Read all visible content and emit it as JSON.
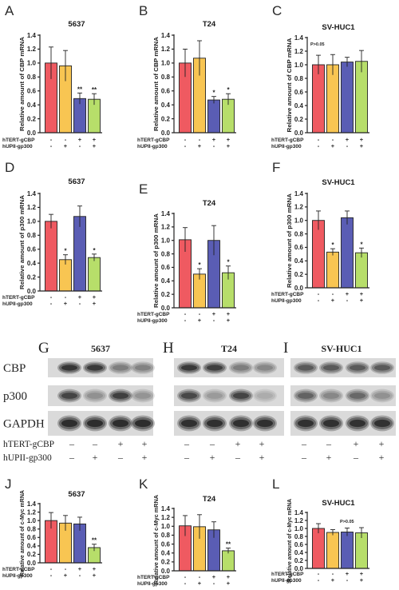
{
  "palette": {
    "bar_colors": [
      "#ef5a61",
      "#f8c552",
      "#5a5db4",
      "#b7de6a"
    ]
  },
  "chart_data": [
    {
      "panel": "A",
      "type": "bar",
      "title": "5637",
      "ylabel": "Relative amount of CBP mRNA",
      "ylim": [
        0,
        1.4
      ],
      "ytick_labels": [
        "0.0",
        "0.2",
        "0.4",
        "0.6",
        "0.8",
        "1.0",
        "1.2",
        "1.4"
      ],
      "values": [
        1.0,
        0.96,
        0.49,
        0.48
      ],
      "errors": [
        0.23,
        0.22,
        0.08,
        0.08
      ],
      "significance": [
        "",
        "",
        "**",
        "**"
      ],
      "annotation": "",
      "conditions": [
        {
          "label": "hTERT-gCBP",
          "signs": [
            "-",
            "-",
            "+",
            "+"
          ]
        },
        {
          "label": "hUPII-gp300",
          "signs": [
            "-",
            "+",
            "-",
            "+"
          ]
        }
      ]
    },
    {
      "panel": "B",
      "type": "bar",
      "title": "T24",
      "ylabel": "Relative amount of CBP mRNA",
      "ylim": [
        0,
        1.4
      ],
      "ytick_labels": [
        "0.0",
        "0.2",
        "0.4",
        "0.6",
        "0.8",
        "1.0",
        "1.2",
        "1.4"
      ],
      "values": [
        1.0,
        1.07,
        0.47,
        0.48
      ],
      "errors": [
        0.2,
        0.25,
        0.05,
        0.08
      ],
      "significance": [
        "",
        "",
        "*",
        "*"
      ],
      "annotation": "",
      "conditions": [
        {
          "label": "hTERT-gCBP",
          "signs": [
            "-",
            "-",
            "+",
            "+"
          ]
        },
        {
          "label": "hUPII-gp300",
          "signs": [
            "-",
            "+",
            "-",
            "+"
          ]
        }
      ]
    },
    {
      "panel": "C",
      "type": "bar",
      "title": "SV-HUC1",
      "ylabel": "Relative amount of CBP mRNA",
      "ylim": [
        0,
        1.4
      ],
      "ytick_labels": [
        "0.0",
        "0.2",
        "0.4",
        "0.6",
        "0.8",
        "1.0",
        "1.2",
        "1.4"
      ],
      "values": [
        1.0,
        1.0,
        1.04,
        1.05
      ],
      "errors": [
        0.14,
        0.15,
        0.07,
        0.16
      ],
      "significance": [
        "",
        "",
        "",
        ""
      ],
      "annotation": "P>0.05",
      "conditions": [
        {
          "label": "hTERT-gCBP",
          "signs": [
            "-",
            "-",
            "+",
            "+"
          ]
        },
        {
          "label": "hUPII-gp300",
          "signs": [
            "-",
            "+",
            "-",
            "+"
          ]
        }
      ]
    },
    {
      "panel": "D",
      "type": "bar",
      "title": "5637",
      "ylabel": "Relative amount of p300 mRNA",
      "ylim": [
        0,
        1.4
      ],
      "ytick_labels": [
        "0.0",
        "0.2",
        "0.4",
        "0.6",
        "0.8",
        "1.0",
        "1.2",
        "1.4"
      ],
      "values": [
        1.0,
        0.45,
        1.07,
        0.48
      ],
      "errors": [
        0.1,
        0.07,
        0.15,
        0.05
      ],
      "significance": [
        "",
        "*",
        "",
        "*"
      ],
      "annotation": "",
      "conditions": [
        {
          "label": "hTERT-gCBP",
          "signs": [
            "-",
            "-",
            "+",
            "+"
          ]
        },
        {
          "label": "hUPII-gp300",
          "signs": [
            "-",
            "+",
            "-",
            "+"
          ]
        }
      ]
    },
    {
      "panel": "E",
      "type": "bar",
      "title": "T24",
      "ylabel": "Relative amount of p300 mRNA",
      "ylim": [
        0,
        1.4
      ],
      "ytick_labels": [
        "0.0",
        "0.2",
        "0.4",
        "0.6",
        "0.8",
        "1.0",
        "1.2",
        "1.4"
      ],
      "values": [
        1.01,
        0.5,
        1.0,
        0.52
      ],
      "errors": [
        0.18,
        0.08,
        0.22,
        0.1
      ],
      "significance": [
        "",
        "*",
        "",
        "*"
      ],
      "annotation": "",
      "conditions": [
        {
          "label": "hTERT-gCBP",
          "signs": [
            "-",
            "-",
            "+",
            "+"
          ]
        },
        {
          "label": "hUPII-gp300",
          "signs": [
            "-",
            "+",
            "-",
            "+"
          ]
        }
      ]
    },
    {
      "panel": "F",
      "type": "bar",
      "title": "SV-HUC1",
      "ylabel": "Relative amount of p300 mRNA",
      "ylim": [
        0,
        1.4
      ],
      "ytick_labels": [
        "0.0",
        "0.2",
        "0.4",
        "0.6",
        "0.8",
        "1.0",
        "1.2",
        "1.4"
      ],
      "values": [
        1.0,
        0.53,
        1.04,
        0.52
      ],
      "errors": [
        0.14,
        0.05,
        0.1,
        0.07
      ],
      "significance": [
        "",
        "*",
        "",
        "*"
      ],
      "annotation": "",
      "conditions": [
        {
          "label": "hTERT-gCBP",
          "signs": [
            "-",
            "-",
            "+",
            "+"
          ]
        },
        {
          "label": "hUPII-gp300",
          "signs": [
            "-",
            "+",
            "-",
            "+"
          ]
        }
      ]
    },
    {
      "panel": "J",
      "type": "bar",
      "title": "5637",
      "ylabel": "Relative amount of c-Myc mRNA",
      "ylim": [
        0,
        1.4
      ],
      "ytick_labels": [
        "0.0",
        "0.2",
        "0.4",
        "0.6",
        "0.8",
        "1.0",
        "1.2",
        "1.4"
      ],
      "values": [
        1.0,
        0.94,
        0.92,
        0.36
      ],
      "errors": [
        0.19,
        0.18,
        0.16,
        0.08
      ],
      "significance": [
        "",
        "",
        "",
        "**"
      ],
      "annotation": "",
      "conditions": [
        {
          "label": "hTERT-gCBP",
          "signs": [
            "-",
            "-",
            "+",
            "+"
          ]
        },
        {
          "label": "hUPII-gp300",
          "signs": [
            "-",
            "+",
            "-",
            "+"
          ]
        }
      ]
    },
    {
      "panel": "K",
      "type": "bar",
      "title": "T24",
      "ylabel": "Relative amount of c-Myc mRNA",
      "ylim": [
        0,
        1.4
      ],
      "ytick_labels": [
        "0.0",
        "0.2",
        "0.4",
        "0.6",
        "0.8",
        "1.0",
        "1.2",
        "1.4"
      ],
      "values": [
        1.01,
        0.99,
        0.92,
        0.45
      ],
      "errors": [
        0.23,
        0.27,
        0.18,
        0.06
      ],
      "significance": [
        "",
        "",
        "",
        "**"
      ],
      "annotation": "",
      "conditions": [
        {
          "label": "hTERT-gCBP",
          "signs": [
            "-",
            "-",
            "+",
            "+"
          ]
        },
        {
          "label": "hUPII-gp300",
          "signs": [
            "-",
            "+",
            "-",
            "+"
          ]
        }
      ]
    },
    {
      "panel": "L",
      "type": "bar",
      "title": "SV-HUC1",
      "ylabel": "Relative amount of c-Myc mRNA",
      "ylim": [
        0,
        1.4
      ],
      "ytick_labels": [
        "0.0",
        "0.2",
        "0.4",
        "0.6",
        "0.8",
        "1.0",
        "1.2",
        "1.4"
      ],
      "values": [
        1.0,
        0.9,
        0.91,
        0.89
      ],
      "errors": [
        0.12,
        0.07,
        0.1,
        0.13
      ],
      "significance": [
        "",
        "",
        "",
        ""
      ],
      "annotation": "P>0.05",
      "conditions": [
        {
          "label": "hTERT-gCBP",
          "signs": [
            "-",
            "-",
            "+",
            "+"
          ]
        },
        {
          "label": "hUPII-gp300",
          "signs": [
            "-",
            "+",
            "-",
            "+"
          ]
        }
      ]
    }
  ],
  "blots": {
    "row_labels": [
      "CBP",
      "p300",
      "GAPDH"
    ],
    "panels": [
      {
        "letter": "G",
        "title": "5637",
        "intensity": [
          [
            0.9,
            0.88,
            0.5,
            0.48
          ],
          [
            0.82,
            0.4,
            0.85,
            0.38
          ],
          [
            0.95,
            0.95,
            0.95,
            0.95
          ]
        ]
      },
      {
        "letter": "H",
        "title": "T24",
        "intensity": [
          [
            0.88,
            0.85,
            0.5,
            0.45
          ],
          [
            0.8,
            0.35,
            0.82,
            0.25
          ],
          [
            0.93,
            0.93,
            0.93,
            0.93
          ]
        ]
      },
      {
        "letter": "I",
        "title": "SV-HUC1",
        "intensity": [
          [
            0.7,
            0.7,
            0.7,
            0.7
          ],
          [
            0.65,
            0.45,
            0.62,
            0.4
          ],
          [
            0.92,
            0.92,
            0.92,
            0.92
          ]
        ]
      }
    ],
    "conditions": [
      {
        "label": "hTERT-gCBP",
        "signs": [
          "–",
          "–",
          "+",
          "+"
        ]
      },
      {
        "label": "hUPII-gp300",
        "signs": [
          "–",
          "+",
          "–",
          "+"
        ]
      }
    ]
  }
}
